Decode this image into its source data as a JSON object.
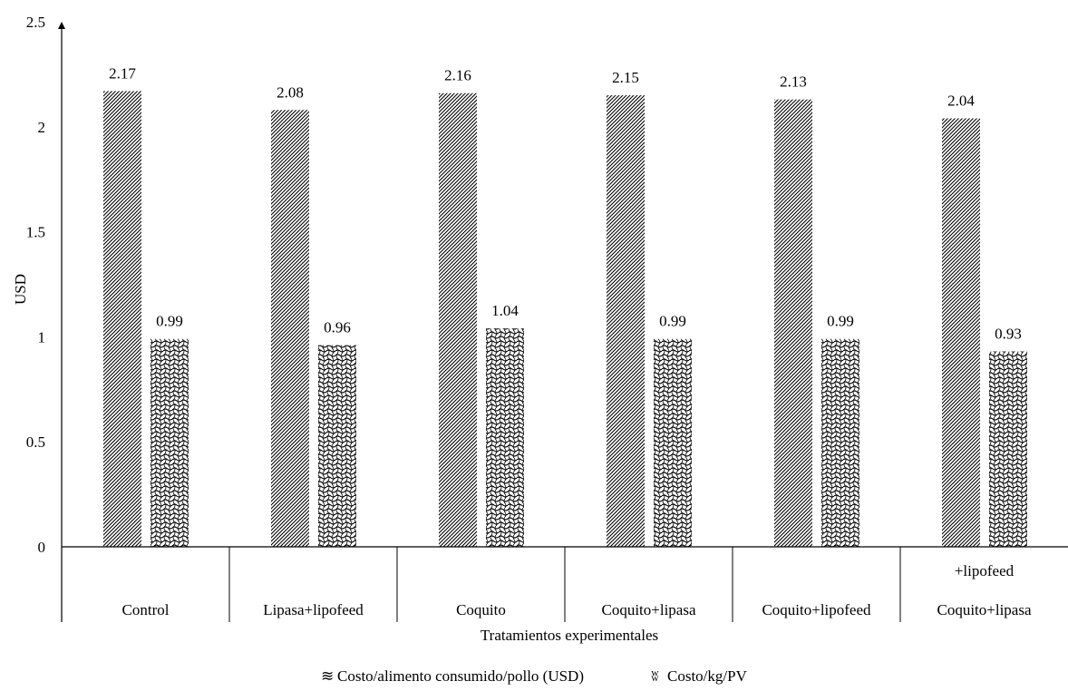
{
  "chart_data": {
    "type": "bar",
    "categories": [
      [
        "Control"
      ],
      [
        "Lipasa+lipofeed"
      ],
      [
        "Coquito"
      ],
      [
        "Coquito+lipasa"
      ],
      [
        "Coquito+lipofeed"
      ],
      [
        "+lipofeed",
        "Coquito+lipasa"
      ]
    ],
    "series": [
      {
        "name": "Costo/alimento consumido/pollo (USD)",
        "values": [
          2.17,
          2.08,
          2.16,
          2.15,
          2.13,
          2.04
        ],
        "pattern": "diagonal-hatch"
      },
      {
        "name": "Costo/kg/PV",
        "values": [
          0.99,
          0.96,
          1.04,
          0.99,
          0.99,
          0.93
        ],
        "pattern": "wave-hatch"
      }
    ],
    "data_labels": [
      [
        "2.17",
        "2.08",
        "2.16",
        "2.15",
        "2.13",
        "2.04"
      ],
      [
        "0.99",
        "0.96",
        "1.04",
        "0.99",
        "0.99",
        "0.93"
      ]
    ],
    "ylabel": "USD",
    "xlabel": "Tratamientos experimentales",
    "ylim": [
      0,
      2.5
    ],
    "yticks": [
      0,
      0.5,
      1,
      1.5,
      2,
      2.5
    ],
    "ytick_labels": [
      "0",
      "0.5",
      "1",
      "1.5",
      "2",
      "2.5"
    ],
    "grid": false,
    "legend_position": "bottom",
    "legend_markers": [
      "≋",
      "ʬ"
    ],
    "colors": {
      "axis": "#000000",
      "hatch": "#000000",
      "background": "#ffffff"
    }
  }
}
